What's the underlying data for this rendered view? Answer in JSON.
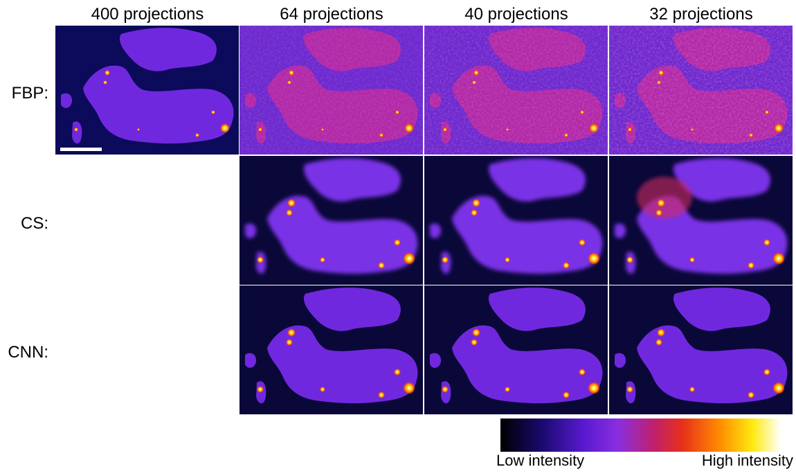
{
  "columns": [
    "400 projections",
    "64 projections",
    "40 projections",
    "32 projections"
  ],
  "rows": [
    "FBP:",
    "CS:",
    "CNN:"
  ],
  "colorbar": {
    "low_label": "Low intensity",
    "high_label": "High intensity"
  }
}
